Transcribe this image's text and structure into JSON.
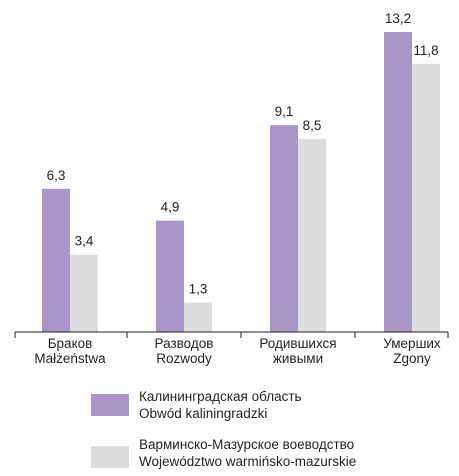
{
  "chart_data": {
    "type": "bar",
    "categories": [
      {
        "line1": "Браков",
        "line2": "Małżeństwa"
      },
      {
        "line1": "Разводов",
        "line2": "Rozwody"
      },
      {
        "line1": "Родившихся",
        "line2": "живыми"
      },
      {
        "line1": "Умерших",
        "line2": "Zgony"
      }
    ],
    "series": [
      {
        "name_ru": "Калининградская область",
        "name_pl": "Obwód kaliningradzki",
        "color": "#a896c8",
        "values": [
          6.3,
          4.9,
          9.1,
          13.2
        ],
        "labels": [
          "6,3",
          "4,9",
          "9,1",
          "13,2"
        ]
      },
      {
        "name_ru": "Варминско-Мазурское воеводство",
        "name_pl": "Województwo warmińsko-mazurskie",
        "color": "#dcdddf",
        "values": [
          3.4,
          1.3,
          8.5,
          11.8
        ],
        "labels": [
          "3,4",
          "1,3",
          "8,5",
          "11,8"
        ]
      }
    ],
    "ylim": [
      0,
      13.2
    ],
    "grid": false,
    "legend_position": "bottom"
  }
}
